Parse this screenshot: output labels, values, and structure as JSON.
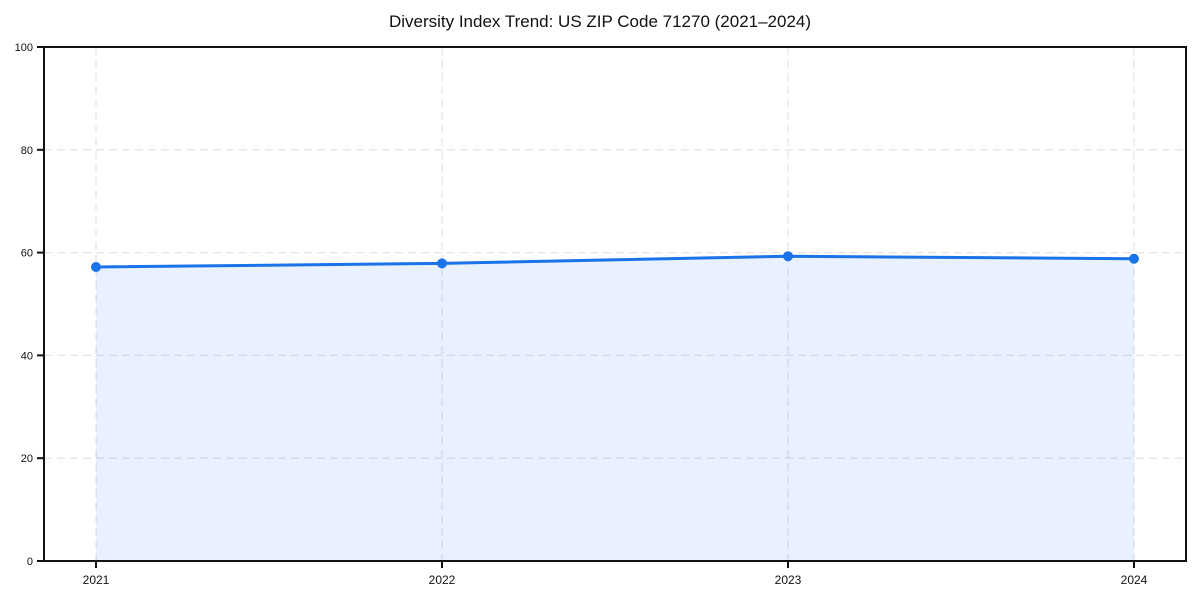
{
  "figure": {
    "background": "#ffffff"
  },
  "chart_data": {
    "type": "area",
    "title": "Diversity Index Trend: US ZIP Code 71270 (2021–2024)",
    "categories": [
      "2021",
      "2022",
      "2023",
      "2024"
    ],
    "values": [
      57.2,
      57.9,
      59.3,
      58.8
    ],
    "xlabel": "",
    "ylabel": "",
    "ylim": [
      0,
      100
    ],
    "yticks": [
      0,
      20,
      40,
      60,
      80,
      100
    ],
    "grid": true,
    "grid_style": "dashed",
    "legend_position": "none",
    "fill_opacity": 0.1,
    "colors": {
      "line": "#1a73e8",
      "marker": "#1a73e8",
      "fill": "#e8f1fd",
      "grid": "#e4e4e4",
      "axis": "#111111",
      "tick_label": "#111111",
      "title": "#111111"
    }
  }
}
